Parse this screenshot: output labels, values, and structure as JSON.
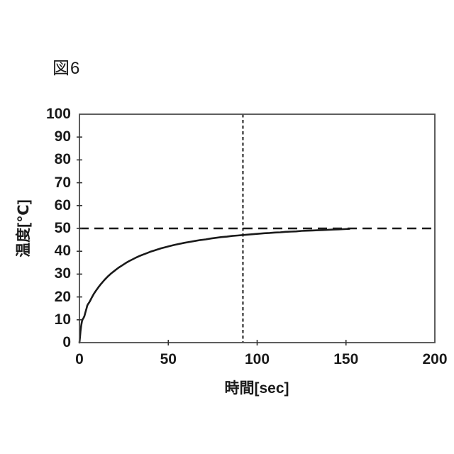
{
  "figure": {
    "label": "図6"
  },
  "chart_data": {
    "type": "line",
    "title": "",
    "xlabel": "時間[sec]",
    "ylabel": "温度[℃]",
    "xlim": [
      0,
      200
    ],
    "ylim": [
      0,
      100
    ],
    "x_ticks": [
      0,
      50,
      100,
      150,
      200
    ],
    "y_ticks": [
      0,
      10,
      20,
      30,
      40,
      50,
      60,
      70,
      80,
      90,
      100
    ],
    "grid": "off",
    "legend": "none",
    "series": [
      {
        "name": "temperature-response",
        "points": [
          [
            0,
            0
          ],
          [
            0.3,
            2.5
          ],
          [
            0.6,
            5
          ],
          [
            1,
            7.5
          ],
          [
            1.4,
            9.3
          ],
          [
            1.8,
            10.2
          ],
          [
            2.3,
            10.8
          ],
          [
            2.8,
            11.6
          ],
          [
            3.2,
            12.8
          ],
          [
            3.6,
            13.9
          ],
          [
            4,
            15
          ],
          [
            4.4,
            16.2
          ],
          [
            4.8,
            16.8
          ],
          [
            5.5,
            17.6
          ],
          [
            6,
            18.3
          ],
          [
            7,
            19.8
          ],
          [
            8,
            21.2
          ],
          [
            9,
            22.4
          ],
          [
            10,
            23.5
          ],
          [
            11,
            24.6
          ],
          [
            12,
            25.6
          ],
          [
            13,
            26.5
          ],
          [
            14,
            27.4
          ],
          [
            15,
            28.2
          ],
          [
            16,
            29
          ],
          [
            17,
            29.7
          ],
          [
            18,
            30.4
          ],
          [
            19,
            31
          ],
          [
            20,
            31.6
          ],
          [
            22,
            32.8
          ],
          [
            24,
            33.8
          ],
          [
            26,
            34.8
          ],
          [
            28,
            35.7
          ],
          [
            30,
            36.5
          ],
          [
            32,
            37.3
          ],
          [
            34,
            38
          ],
          [
            36,
            38.6
          ],
          [
            38,
            39.2
          ],
          [
            40,
            39.8
          ],
          [
            42,
            40.3
          ],
          [
            44,
            40.8
          ],
          [
            46,
            41.3
          ],
          [
            48,
            41.7
          ],
          [
            50,
            42.1
          ],
          [
            53,
            42.7
          ],
          [
            56,
            43.2
          ],
          [
            59,
            43.7
          ],
          [
            62,
            44.1
          ],
          [
            65,
            44.5
          ],
          [
            68,
            44.9
          ],
          [
            71,
            45.2
          ],
          [
            74,
            45.6
          ],
          [
            77,
            45.9
          ],
          [
            80,
            46.2
          ],
          [
            83,
            46.4
          ],
          [
            86,
            46.7
          ],
          [
            89,
            46.9
          ],
          [
            92,
            47.1
          ],
          [
            95,
            47.3
          ],
          [
            98,
            47.5
          ],
          [
            101,
            47.7
          ],
          [
            104,
            47.9
          ],
          [
            107,
            48.0
          ],
          [
            110,
            48.2
          ],
          [
            113,
            48.3
          ],
          [
            116,
            48.5
          ],
          [
            119,
            48.6
          ],
          [
            122,
            48.7
          ],
          [
            125,
            48.9
          ],
          [
            128,
            49.0
          ],
          [
            131,
            49.1
          ],
          [
            134,
            49.2
          ],
          [
            137,
            49.3
          ],
          [
            140,
            49.4
          ],
          [
            143,
            49.5
          ],
          [
            146,
            49.6
          ],
          [
            149,
            49.7
          ],
          [
            152,
            49.8
          ]
        ]
      }
    ],
    "reference_lines": [
      {
        "orientation": "horizontal",
        "value": 50,
        "style": "long-dash"
      },
      {
        "orientation": "vertical",
        "value": 92,
        "style": "short-dash"
      }
    ]
  },
  "colors": {
    "background": "#ffffff",
    "axis": "#4d4d4d",
    "tick": "#333333",
    "line": "#1a1a1a",
    "reference": "#1a1a1a",
    "text": "#1a1a1a"
  }
}
